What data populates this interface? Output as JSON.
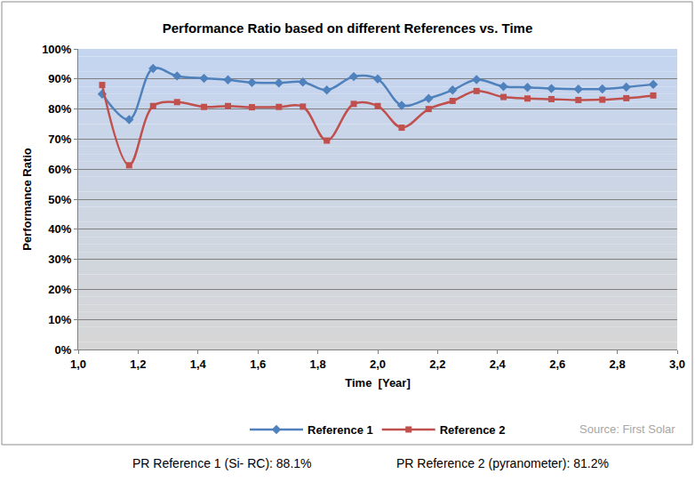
{
  "chart_data": {
    "type": "line",
    "title": "Performance Ratio based on different References vs. Time",
    "x_label": "Time  [Year]",
    "y_label": "Performance Ratio",
    "x": [
      1.08,
      1.17,
      1.25,
      1.33,
      1.42,
      1.5,
      1.58,
      1.67,
      1.75,
      1.83,
      1.92,
      2.0,
      2.08,
      2.17,
      2.25,
      2.33,
      2.42,
      2.5,
      2.58,
      2.67,
      2.75,
      2.83,
      2.92
    ],
    "series": [
      {
        "name": "Reference 1",
        "color": "#4f81bd",
        "marker": "diamond",
        "line_style": "smooth",
        "values": [
          85,
          76.5,
          93.5,
          91,
          90.2,
          89.7,
          88.8,
          88.7,
          89,
          86.3,
          90.8,
          90,
          81.2,
          83.5,
          86.3,
          89.8,
          87.5,
          87.2,
          86.8,
          86.6,
          86.7,
          87.3,
          88.2
        ]
      },
      {
        "name": "Reference 2",
        "color": "#c0504d",
        "marker": "square",
        "line_style": "smooth",
        "values": [
          88,
          61.3,
          81,
          82.3,
          80.7,
          81,
          80.6,
          80.7,
          80.8,
          69.5,
          81.7,
          81,
          73.8,
          80,
          82.7,
          86,
          84,
          83.5,
          83.3,
          83,
          83.1,
          83.6,
          84.5
        ]
      }
    ],
    "xlim": [
      1.0,
      3.0
    ],
    "xticks": [
      {
        "value": 1.0,
        "label": "1,0"
      },
      {
        "value": 1.2,
        "label": "1,2"
      },
      {
        "value": 1.4,
        "label": "1,4"
      },
      {
        "value": 1.6,
        "label": "1,6"
      },
      {
        "value": 1.8,
        "label": "1,8"
      },
      {
        "value": 2.0,
        "label": "2,0"
      },
      {
        "value": 2.2,
        "label": "2,2"
      },
      {
        "value": 2.4,
        "label": "2,4"
      },
      {
        "value": 2.6,
        "label": "2,6"
      },
      {
        "value": 2.8,
        "label": "2,8"
      },
      {
        "value": 3.0,
        "label": "3,0"
      }
    ],
    "ylim": [
      0,
      100
    ],
    "yticks": [
      {
        "value": 0,
        "label": "0%"
      },
      {
        "value": 10,
        "label": "10%"
      },
      {
        "value": 20,
        "label": "20%"
      },
      {
        "value": 30,
        "label": "30%"
      },
      {
        "value": 40,
        "label": "40%"
      },
      {
        "value": 50,
        "label": "50%"
      },
      {
        "value": 60,
        "label": "60%"
      },
      {
        "value": 70,
        "label": "70%"
      },
      {
        "value": 80,
        "label": "80%"
      },
      {
        "value": 90,
        "label": "90%"
      },
      {
        "value": 100,
        "label": "100%"
      }
    ],
    "grid": true,
    "legend": "bottom",
    "source": "Source: First Solar",
    "notes": [
      "PR Reference 1 (Si- RC): 88.1%",
      "PR Reference 2 (pyranometer): 81.2%"
    ]
  }
}
